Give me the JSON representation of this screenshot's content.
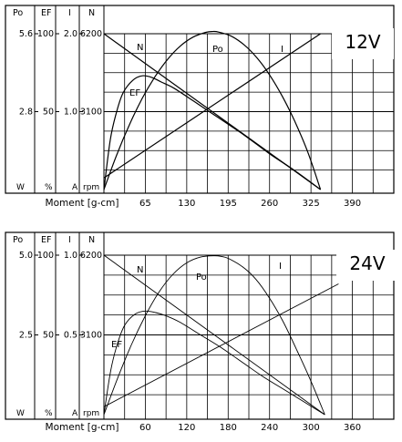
{
  "chart_data": [
    {
      "type": "line",
      "title": "12V",
      "xlabel": "Moment [g-cm]",
      "x_ticks": [
        "65",
        "130",
        "195",
        "260",
        "325",
        "390"
      ],
      "xlim": [
        0,
        455
      ],
      "axes": [
        {
          "key": "Po",
          "header": "Po",
          "unit": "W",
          "max": 5.6,
          "ticks": [
            "5.6",
            "2.8"
          ]
        },
        {
          "key": "EF",
          "header": "EF",
          "unit": "%",
          "max": 100,
          "ticks": [
            "100",
            "50"
          ]
        },
        {
          "key": "I",
          "header": "I",
          "unit": "A",
          "max": 2.0,
          "ticks": [
            "2.0",
            "1.0"
          ]
        },
        {
          "key": "N",
          "header": "N",
          "unit": "rpm",
          "max": 6200,
          "ticks": [
            "6200",
            "3100"
          ]
        }
      ],
      "series": [
        {
          "name": "N",
          "axis": "N",
          "x": [
            0,
            340
          ],
          "y": [
            6200,
            0
          ]
        },
        {
          "name": "I",
          "axis": "I",
          "x": [
            0,
            340
          ],
          "y": [
            0.15,
            2.0
          ]
        },
        {
          "name": "Po",
          "axis": "Po",
          "x": [
            0,
            20,
            40,
            60,
            80,
            100,
            120,
            140,
            160,
            170,
            180,
            200,
            220,
            240,
            260,
            280,
            300,
            320,
            340
          ],
          "y": [
            0,
            1.24,
            2.33,
            3.27,
            4.05,
            4.68,
            5.16,
            5.48,
            5.65,
            5.68,
            5.66,
            5.51,
            5.2,
            4.74,
            4.12,
            3.35,
            2.43,
            1.35,
            0
          ]
        },
        {
          "name": "EF",
          "axis": "EF",
          "x": [
            0,
            10,
            20,
            30,
            45,
            60,
            75,
            90,
            110,
            140,
            180,
            220,
            260,
            300,
            340
          ],
          "y": [
            0,
            32,
            50,
            62,
            70,
            73,
            72,
            69,
            65,
            57,
            46,
            35,
            23,
            12,
            0
          ]
        }
      ]
    },
    {
      "type": "line",
      "title": "24V",
      "xlabel": "Moment [g-cm]",
      "x_ticks": [
        "60",
        "120",
        "180",
        "240",
        "300",
        "360"
      ],
      "xlim": [
        0,
        420
      ],
      "axes": [
        {
          "key": "Po",
          "header": "Po",
          "unit": "W",
          "max": 5.0,
          "ticks": [
            "5.0",
            "2.5"
          ]
        },
        {
          "key": "EF",
          "header": "EF",
          "unit": "%",
          "max": 100,
          "ticks": [
            "100",
            "50"
          ]
        },
        {
          "key": "I",
          "header": "I",
          "unit": "A",
          "max": 1.0,
          "ticks": [
            "1.0",
            "0.5"
          ]
        },
        {
          "key": "N",
          "header": "N",
          "unit": "rpm",
          "max": 6200,
          "ticks": [
            "6200",
            "3100"
          ]
        }
      ],
      "series": [
        {
          "name": "N",
          "axis": "N",
          "x": [
            0,
            320
          ],
          "y": [
            6200,
            0
          ]
        },
        {
          "name": "I",
          "axis": "I",
          "x": [
            0,
            340
          ],
          "y": [
            0.05,
            0.82
          ]
        },
        {
          "name": "Po",
          "axis": "Po",
          "x": [
            0,
            20,
            40,
            60,
            80,
            100,
            120,
            140,
            160,
            170,
            180,
            200,
            220,
            240,
            260,
            280,
            300,
            320
          ],
          "y": [
            0,
            1.15,
            2.2,
            3.1,
            3.85,
            4.4,
            4.76,
            4.94,
            4.98,
            4.96,
            4.9,
            4.65,
            4.25,
            3.65,
            2.9,
            2.0,
            1.05,
            0
          ]
        },
        {
          "name": "EF",
          "axis": "EF",
          "x": [
            0,
            10,
            20,
            30,
            45,
            60,
            75,
            90,
            110,
            140,
            170,
            200,
            230,
            260,
            290,
            320
          ],
          "y": [
            0,
            28,
            45,
            56,
            63,
            65,
            64,
            62,
            58,
            50,
            42,
            33,
            24,
            16,
            8,
            0
          ]
        }
      ]
    }
  ]
}
